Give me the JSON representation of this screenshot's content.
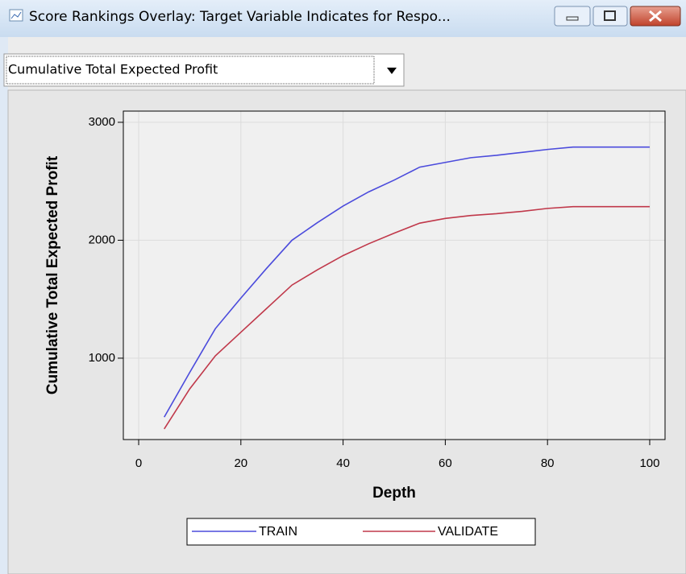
{
  "window": {
    "title": "Score Rankings Overlay: Target Variable Indicates for Respo...",
    "dropdown": "Cumulative Total Expected Profit"
  },
  "chart_data": {
    "type": "line",
    "x_label": "Depth",
    "y_label": "Cumulative Total Expected Profit",
    "x": [
      5,
      10,
      15,
      20,
      25,
      30,
      35,
      40,
      45,
      50,
      55,
      60,
      65,
      70,
      75,
      80,
      85,
      90,
      95,
      100
    ],
    "series": [
      {
        "name": "TRAIN",
        "color": "#4b4bdc",
        "values": [
          500,
          880,
          1250,
          1510,
          1760,
          2000,
          2150,
          2290,
          2410,
          2510,
          2620,
          2660,
          2700,
          2720,
          2745,
          2770,
          2790,
          2790,
          2790,
          2790
        ]
      },
      {
        "name": "VALIDATE",
        "color": "#c0384a",
        "values": [
          400,
          740,
          1020,
          1220,
          1420,
          1620,
          1750,
          1870,
          1970,
          2060,
          2145,
          2185,
          2210,
          2225,
          2245,
          2270,
          2285,
          2285,
          2285,
          2285
        ]
      }
    ],
    "xlim": [
      -3,
      103
    ],
    "xticks": [
      0,
      20,
      40,
      60,
      80,
      100
    ],
    "ylim": [
      310,
      3095
    ],
    "yticks": [
      1000,
      2000,
      3000
    ],
    "grid": true,
    "legend": "bottom"
  }
}
